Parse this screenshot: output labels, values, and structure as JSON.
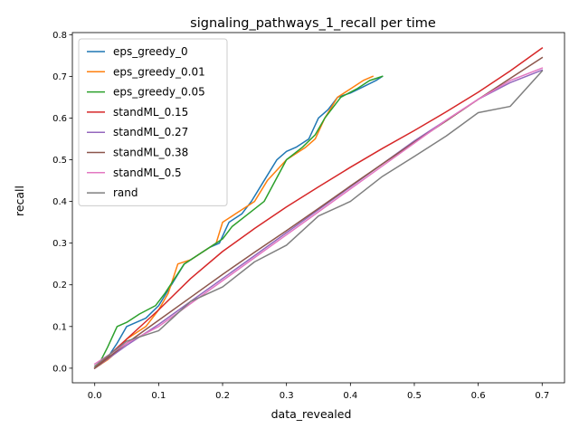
{
  "chart_data": {
    "type": "line",
    "title": "signaling_pathways_1_recall per time",
    "xlabel": "data_revealed",
    "ylabel": "recall",
    "xlim": [
      -0.035,
      0.735
    ],
    "ylim": [
      -0.035,
      0.805
    ],
    "xticks": [
      0.0,
      0.1,
      0.2,
      0.3,
      0.4,
      0.5,
      0.6,
      0.7
    ],
    "xtick_labels": [
      "0.0",
      "0.1",
      "0.2",
      "0.3",
      "0.4",
      "0.5",
      "0.6",
      "0.7"
    ],
    "yticks": [
      0.0,
      0.1,
      0.2,
      0.3,
      0.4,
      0.5,
      0.6,
      0.7,
      0.8
    ],
    "ytick_labels": [
      "0.0",
      "0.1",
      "0.2",
      "0.3",
      "0.4",
      "0.5",
      "0.6",
      "0.7",
      "0.8"
    ],
    "grid": false,
    "legend_position": "top-left",
    "series": [
      {
        "name": "eps_greedy_0",
        "color": "#1f77b4",
        "x": [
          0.0,
          0.01,
          0.02,
          0.035,
          0.05,
          0.08,
          0.1,
          0.12,
          0.14,
          0.16,
          0.18,
          0.195,
          0.21,
          0.23,
          0.245,
          0.265,
          0.285,
          0.3,
          0.315,
          0.335,
          0.35,
          0.365,
          0.38,
          0.4,
          0.42,
          0.44,
          0.45
        ],
        "y": [
          0.0,
          0.01,
          0.025,
          0.06,
          0.1,
          0.12,
          0.15,
          0.2,
          0.25,
          0.27,
          0.29,
          0.3,
          0.35,
          0.37,
          0.4,
          0.45,
          0.5,
          0.52,
          0.53,
          0.55,
          0.6,
          0.62,
          0.65,
          0.66,
          0.675,
          0.69,
          0.7
        ]
      },
      {
        "name": "eps_greedy_0.01",
        "color": "#ff7f0e",
        "x": [
          0.0,
          0.02,
          0.035,
          0.05,
          0.08,
          0.1,
          0.115,
          0.13,
          0.15,
          0.17,
          0.19,
          0.2,
          0.22,
          0.25,
          0.27,
          0.3,
          0.33,
          0.345,
          0.36,
          0.38,
          0.4,
          0.42,
          0.435
        ],
        "y": [
          0.0,
          0.02,
          0.04,
          0.07,
          0.1,
          0.14,
          0.18,
          0.25,
          0.26,
          0.28,
          0.3,
          0.35,
          0.37,
          0.4,
          0.45,
          0.5,
          0.53,
          0.55,
          0.6,
          0.65,
          0.67,
          0.69,
          0.7
        ]
      },
      {
        "name": "eps_greedy_0.05",
        "color": "#2ca02c",
        "x": [
          0.0,
          0.01,
          0.02,
          0.035,
          0.05,
          0.07,
          0.095,
          0.11,
          0.14,
          0.16,
          0.18,
          0.2,
          0.215,
          0.24,
          0.265,
          0.3,
          0.325,
          0.345,
          0.36,
          0.385,
          0.41,
          0.43,
          0.45
        ],
        "y": [
          0.0,
          0.02,
          0.05,
          0.1,
          0.11,
          0.13,
          0.15,
          0.18,
          0.25,
          0.27,
          0.29,
          0.31,
          0.34,
          0.37,
          0.4,
          0.5,
          0.53,
          0.56,
          0.6,
          0.65,
          0.67,
          0.69,
          0.7
        ]
      },
      {
        "name": "standML_0.15",
        "color": "#d62728",
        "x": [
          0.0,
          0.05,
          0.1,
          0.15,
          0.2,
          0.25,
          0.3,
          0.35,
          0.4,
          0.45,
          0.5,
          0.55,
          0.6,
          0.65,
          0.7
        ],
        "y": [
          0.0,
          0.07,
          0.14,
          0.215,
          0.28,
          0.335,
          0.387,
          0.435,
          0.482,
          0.527,
          0.57,
          0.615,
          0.662,
          0.713,
          0.768
        ]
      },
      {
        "name": "standML_0.27",
        "color": "#9467bd",
        "x": [
          0.0,
          0.05,
          0.1,
          0.15,
          0.2,
          0.25,
          0.3,
          0.35,
          0.4,
          0.45,
          0.5,
          0.55,
          0.6,
          0.65,
          0.7
        ],
        "y": [
          0.0,
          0.055,
          0.105,
          0.16,
          0.215,
          0.27,
          0.325,
          0.38,
          0.435,
          0.49,
          0.545,
          0.595,
          0.645,
          0.685,
          0.715
        ]
      },
      {
        "name": "standML_0.38",
        "color": "#8c564b",
        "x": [
          0.0,
          0.05,
          0.1,
          0.15,
          0.2,
          0.25,
          0.3,
          0.35,
          0.4,
          0.45,
          0.5,
          0.55,
          0.6,
          0.65,
          0.7
        ],
        "y": [
          0.0,
          0.06,
          0.115,
          0.17,
          0.225,
          0.278,
          0.33,
          0.383,
          0.437,
          0.49,
          0.542,
          0.593,
          0.645,
          0.695,
          0.745
        ]
      },
      {
        "name": "standML_0.5",
        "color": "#e377c2",
        "x": [
          0.0,
          0.03,
          0.05,
          0.1,
          0.15,
          0.2,
          0.25,
          0.3,
          0.35,
          0.4,
          0.45,
          0.5,
          0.55,
          0.6,
          0.65,
          0.7
        ],
        "y": [
          0.01,
          0.04,
          0.06,
          0.1,
          0.155,
          0.21,
          0.265,
          0.32,
          0.375,
          0.43,
          0.485,
          0.54,
          0.595,
          0.645,
          0.69,
          0.72
        ]
      },
      {
        "name": "rand",
        "color": "#7f7f7f",
        "x": [
          0.0,
          0.05,
          0.1,
          0.15,
          0.2,
          0.25,
          0.3,
          0.35,
          0.4,
          0.45,
          0.5,
          0.55,
          0.6,
          0.65,
          0.7
        ],
        "y": [
          0.005,
          0.065,
          0.09,
          0.16,
          0.195,
          0.255,
          0.295,
          0.365,
          0.4,
          0.46,
          0.508,
          0.557,
          0.613,
          0.628,
          0.713
        ]
      }
    ]
  }
}
